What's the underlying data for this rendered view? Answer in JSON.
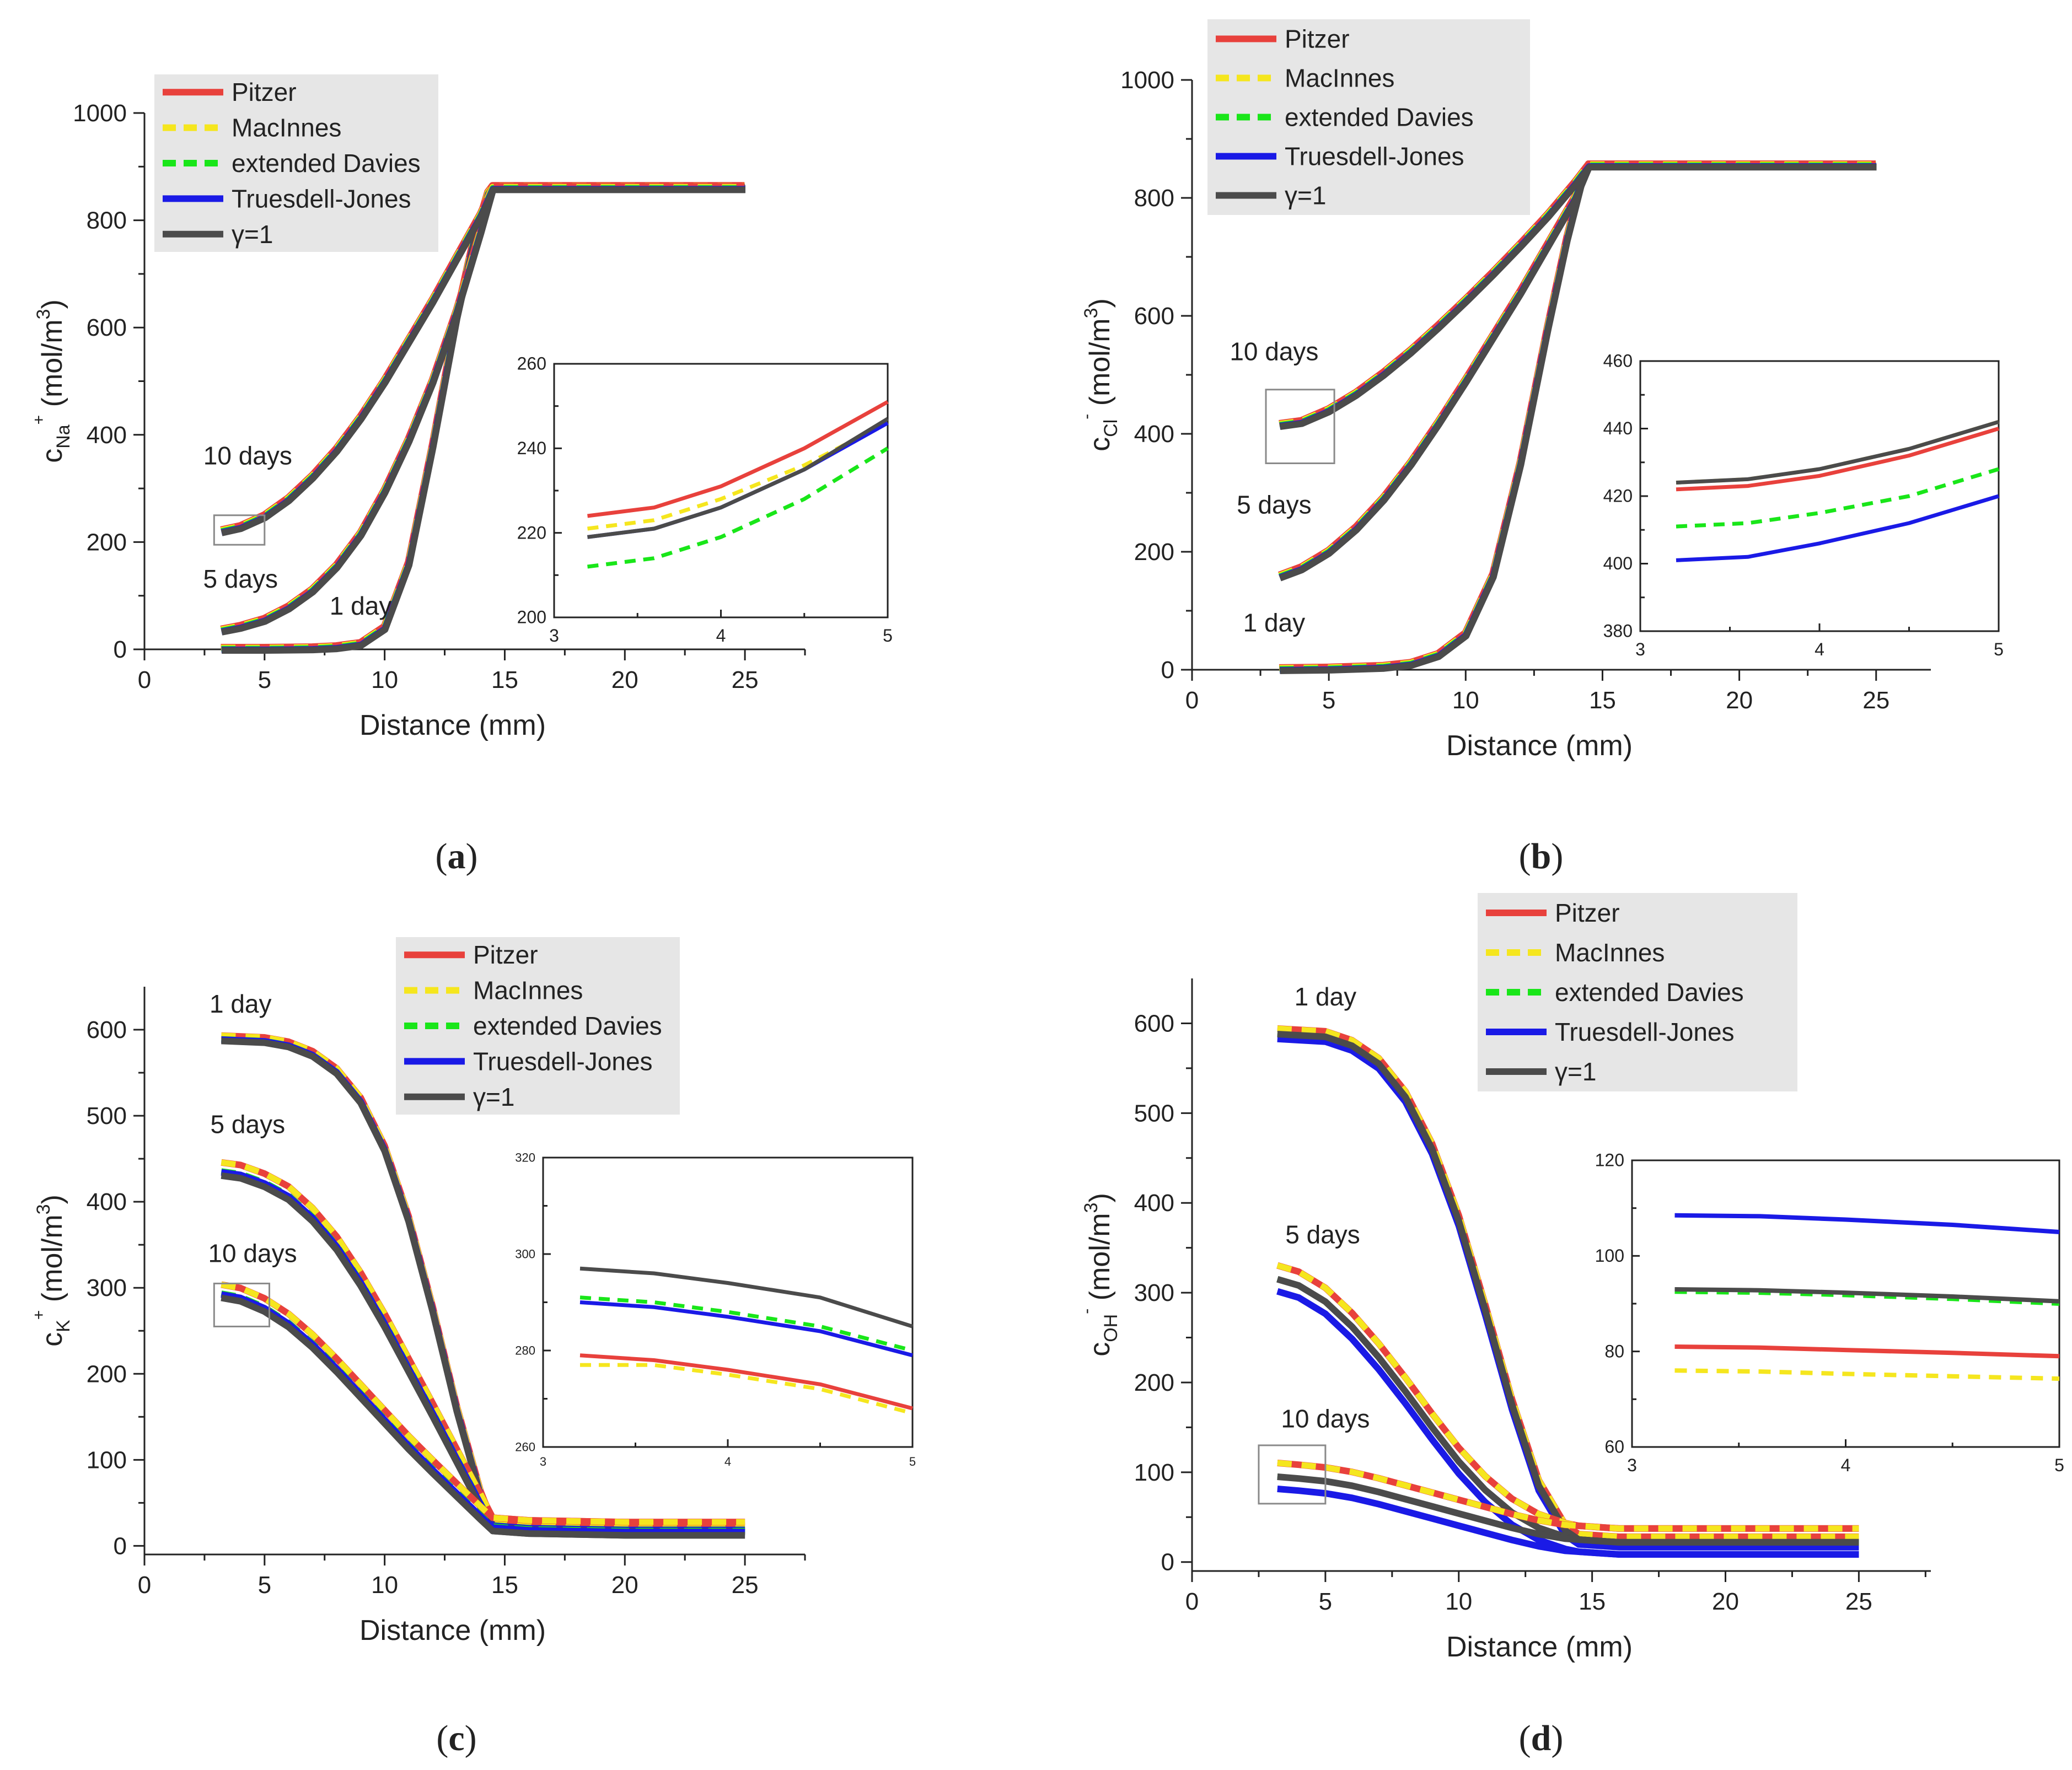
{
  "colors": {
    "pitzer": "#e8413c",
    "macinnes": "#f5e61e",
    "davies": "#19e619",
    "truesdell": "#1a1ae6",
    "ideal": "#4b4b4b",
    "axis": "#222222",
    "legend_bg": "#e6e6e6",
    "zoom_box": "#8a8a8a"
  },
  "chart_data": [
    {
      "id": "a",
      "type": "line",
      "caption_label": "a",
      "xlabel": "Distance (mm)",
      "ylabel_main": "c",
      "ylabel_sub": "Na",
      "ylabel_sup": "+",
      "ylabel_unit": " (mol/m",
      "ylabel_unit_sup": "3",
      "ylabel_close": ")",
      "xlim": [
        0,
        27.5
      ],
      "ylim": [
        0,
        1000
      ],
      "xticks": [
        0,
        5,
        10,
        15,
        20,
        25
      ],
      "yticks": [
        0,
        200,
        400,
        600,
        800,
        1000
      ],
      "legend": [
        "Pitzer",
        "MacInnes",
        "extended Davies",
        "Truesdell-Jones",
        "γ=1"
      ],
      "annotations": [
        {
          "text": "10 days",
          "x": 4.3,
          "y": 345
        },
        {
          "text": "5 days",
          "x": 4,
          "y": 115
        },
        {
          "text": "1 day",
          "x": 9,
          "y": 65
        }
      ],
      "zoom_box": {
        "x": [
          2.9,
          5.0
        ],
        "y": [
          195,
          250
        ]
      },
      "series": [
        {
          "name": "1 day",
          "x": [
            3.2,
            5,
            7,
            8,
            9,
            10,
            11,
            12,
            13,
            13.7,
            14.3,
            14.5,
            16,
            20,
            25
          ],
          "y": [
            1,
            1,
            2,
            4,
            10,
            40,
            160,
            380,
            620,
            760,
            850,
            862,
            862,
            862,
            862
          ]
        },
        {
          "name": "5 days",
          "x": [
            3.2,
            4,
            5,
            6,
            7,
            8,
            9,
            10,
            11,
            12,
            13,
            14,
            14.5,
            16,
            20,
            25
          ],
          "y": [
            35,
            42,
            55,
            78,
            110,
            155,
            215,
            295,
            390,
            500,
            630,
            780,
            860,
            860,
            860,
            860
          ]
        },
        {
          "name": "10 days",
          "x": [
            3.2,
            4,
            5,
            6,
            7,
            8,
            9,
            10,
            11,
            12,
            13,
            14,
            14.5,
            16,
            20,
            25
          ],
          "y": [
            220,
            228,
            248,
            280,
            322,
            372,
            432,
            500,
            575,
            650,
            730,
            810,
            860,
            860,
            860,
            860
          ]
        }
      ],
      "inset": {
        "xlim": [
          3,
          5
        ],
        "ylim": [
          200,
          260
        ],
        "xticks": [
          3,
          4,
          5
        ],
        "yticks": [
          200,
          220,
          240,
          260
        ],
        "series": [
          {
            "name": "Pitzer",
            "x": [
              3.2,
              3.6,
              4.0,
              4.5,
              5.0
            ],
            "y": [
              224,
              226,
              231,
              240,
              251
            ]
          },
          {
            "name": "MacInnes",
            "x": [
              3.2,
              3.6,
              4.0,
              4.5,
              5.0
            ],
            "y": [
              221,
              223,
              228,
              236,
              246
            ]
          },
          {
            "name": "extended Davies",
            "x": [
              3.2,
              3.6,
              4.0,
              4.5,
              5.0
            ],
            "y": [
              212,
              214,
              219,
              228,
              240
            ]
          },
          {
            "name": "Truesdell-Jones",
            "x": [
              3.2,
              3.6,
              4.0,
              4.5,
              5.0
            ],
            "y": [
              219,
              221,
              226,
              235,
              246
            ]
          },
          {
            "name": "γ=1",
            "x": [
              3.2,
              3.6,
              4.0,
              4.5,
              5.0
            ],
            "y": [
              219,
              221,
              226,
              235,
              247
            ]
          }
        ]
      }
    },
    {
      "id": "b",
      "type": "line",
      "caption_label": "b",
      "xlabel": "Distance (mm)",
      "ylabel_main": "c",
      "ylabel_sub": "Cl",
      "ylabel_sup": "-",
      "ylabel_unit": " (mol/m",
      "ylabel_unit_sup": "3",
      "ylabel_close": ")",
      "xlim": [
        0,
        27
      ],
      "ylim": [
        0,
        1000
      ],
      "xticks": [
        0,
        5,
        10,
        15,
        20,
        25
      ],
      "yticks": [
        0,
        200,
        400,
        600,
        800,
        1000
      ],
      "legend": [
        "Pitzer",
        "MacInnes",
        "extended Davies",
        "Truesdell-Jones",
        "γ=1"
      ],
      "annotations": [
        {
          "text": "10 days",
          "x": 3,
          "y": 525
        },
        {
          "text": "5 days",
          "x": 3,
          "y": 265
        },
        {
          "text": "1 day",
          "x": 3,
          "y": 65
        }
      ],
      "zoom_box": {
        "x": [
          2.7,
          5.2
        ],
        "y": [
          350,
          475
        ]
      },
      "series": [
        {
          "name": "1 day",
          "x": [
            3.2,
            5,
            7,
            8,
            9,
            10,
            11,
            12,
            13,
            13.7,
            14.3,
            14.5,
            16,
            20,
            25
          ],
          "y": [
            1,
            2,
            5,
            10,
            25,
            60,
            160,
            350,
            580,
            730,
            840,
            855,
            855,
            855,
            855
          ]
        },
        {
          "name": "5 days",
          "x": [
            3.2,
            4,
            5,
            6,
            7,
            8,
            9,
            10,
            11,
            12,
            13,
            14,
            14.5,
            16,
            20,
            25
          ],
          "y": [
            158,
            172,
            200,
            240,
            290,
            350,
            418,
            490,
            565,
            640,
            720,
            800,
            855,
            855,
            855,
            855
          ]
        },
        {
          "name": "10 days",
          "x": [
            3.2,
            4,
            5,
            6,
            7,
            8,
            9,
            10,
            11,
            12,
            13,
            14,
            14.5,
            16,
            20,
            25
          ],
          "y": [
            415,
            420,
            440,
            468,
            502,
            540,
            582,
            626,
            672,
            720,
            770,
            825,
            855,
            855,
            855,
            855
          ]
        }
      ],
      "inset": {
        "xlim": [
          3,
          5
        ],
        "ylim": [
          380,
          460
        ],
        "xticks": [
          3,
          4,
          5
        ],
        "yticks": [
          380,
          400,
          420,
          440,
          460
        ],
        "series": [
          {
            "name": "Pitzer",
            "x": [
              3.2,
              3.6,
              4.0,
              4.5,
              5.0
            ],
            "y": [
              422,
              423,
              426,
              432,
              440
            ]
          },
          {
            "name": "MacInnes",
            "x": [
              3.2,
              3.6,
              4.0,
              4.5,
              5.0
            ],
            "y": [
              424,
              425,
              428,
              434,
              442
            ]
          },
          {
            "name": "extended Davies",
            "x": [
              3.2,
              3.6,
              4.0,
              4.5,
              5.0
            ],
            "y": [
              411,
              412,
              415,
              420,
              428
            ]
          },
          {
            "name": "Truesdell-Jones",
            "x": [
              3.2,
              3.6,
              4.0,
              4.5,
              5.0
            ],
            "y": [
              401,
              402,
              406,
              412,
              420
            ]
          },
          {
            "name": "γ=1",
            "x": [
              3.2,
              3.6,
              4.0,
              4.5,
              5.0
            ],
            "y": [
              424,
              425,
              428,
              434,
              442
            ]
          }
        ]
      }
    },
    {
      "id": "c",
      "type": "line",
      "caption_label": "c",
      "xlabel": "Distance (mm)",
      "ylabel_main": "c",
      "ylabel_sub": "K",
      "ylabel_sup": "+",
      "ylabel_unit": " (mol/m",
      "ylabel_unit_sup": "3",
      "ylabel_close": ")",
      "xlim": [
        0,
        27.5
      ],
      "ylim": [
        -10,
        650
      ],
      "xticks": [
        0,
        5,
        10,
        15,
        20,
        25
      ],
      "yticks": [
        0,
        100,
        200,
        300,
        400,
        500,
        600
      ],
      "legend": [
        "Pitzer",
        "MacInnes",
        "extended Davies",
        "Truesdell-Jones",
        "γ=1"
      ],
      "annotations": [
        {
          "text": "1 day",
          "x": 4,
          "y": 620
        },
        {
          "text": "5 days",
          "x": 4.3,
          "y": 480
        },
        {
          "text": "10 days",
          "x": 4.5,
          "y": 330
        }
      ],
      "zoom_box": {
        "x": [
          2.9,
          5.2
        ],
        "y": [
          255,
          305
        ]
      },
      "series": [
        {
          "name": "1 day",
          "x": [
            3.2,
            5,
            6,
            7,
            8,
            9,
            10,
            11,
            12,
            13,
            14,
            14.5,
            16,
            20,
            25
          ],
          "y": [
            590,
            588,
            583,
            572,
            552,
            518,
            462,
            380,
            275,
            160,
            60,
            25,
            22,
            20,
            20
          ]
        },
        {
          "name": "5 days",
          "x": [
            3.2,
            4,
            5,
            6,
            7,
            8,
            9,
            10,
            11,
            12,
            13,
            14,
            14.5,
            16,
            20,
            25
          ],
          "y": [
            438,
            435,
            425,
            410,
            385,
            352,
            310,
            262,
            210,
            158,
            105,
            52,
            25,
            22,
            20,
            20
          ]
        },
        {
          "name": "10 days",
          "x": [
            3.2,
            4,
            5,
            6,
            7,
            8,
            9,
            10,
            11,
            12,
            13,
            14,
            14.5,
            16,
            20,
            25
          ],
          "y": [
            296,
            292,
            280,
            262,
            238,
            210,
            180,
            150,
            120,
            92,
            65,
            38,
            25,
            22,
            20,
            20
          ]
        }
      ],
      "inset": {
        "xlim": [
          3,
          5
        ],
        "ylim": [
          260,
          320
        ],
        "xticks": [
          3,
          4,
          5
        ],
        "yticks": [
          260,
          280,
          300,
          320
        ],
        "series": [
          {
            "name": "Pitzer",
            "x": [
              3.2,
              3.6,
              4.0,
              4.5,
              5.0
            ],
            "y": [
              279,
              278,
              276,
              273,
              268
            ]
          },
          {
            "name": "MacInnes",
            "x": [
              3.2,
              3.6,
              4.0,
              4.5,
              5.0
            ],
            "y": [
              277,
              277,
              275,
              272,
              267
            ]
          },
          {
            "name": "extended Davies",
            "x": [
              3.2,
              3.6,
              4.0,
              4.5,
              5.0
            ],
            "y": [
              291,
              290,
              288,
              285,
              280
            ]
          },
          {
            "name": "Truesdell-Jones",
            "x": [
              3.2,
              3.6,
              4.0,
              4.5,
              5.0
            ],
            "y": [
              290,
              289,
              287,
              284,
              279
            ]
          },
          {
            "name": "γ=1",
            "x": [
              3.2,
              3.6,
              4.0,
              4.5,
              5.0
            ],
            "y": [
              297,
              296,
              294,
              291,
              285
            ]
          }
        ]
      }
    },
    {
      "id": "d",
      "type": "line",
      "caption_label": "d",
      "xlabel": "Distance (mm)",
      "ylabel_main": "c",
      "ylabel_sub": "OH",
      "ylabel_sup": "-",
      "ylabel_unit": " (mol/m",
      "ylabel_unit_sup": "3",
      "ylabel_close": ")",
      "xlim": [
        0,
        27.7
      ],
      "ylim": [
        -10,
        650
      ],
      "xticks": [
        0,
        5,
        10,
        15,
        20,
        25
      ],
      "yticks": [
        0,
        100,
        200,
        300,
        400,
        500,
        600
      ],
      "legend": [
        "Pitzer",
        "MacInnes",
        "extended Davies",
        "Truesdell-Jones",
        "γ=1"
      ],
      "annotations": [
        {
          "text": "1 day",
          "x": 5,
          "y": 620
        },
        {
          "text": "5 days",
          "x": 4.9,
          "y": 355
        },
        {
          "text": "10 days",
          "x": 5,
          "y": 150
        }
      ],
      "zoom_box": {
        "x": [
          2.5,
          5
        ],
        "y": [
          65,
          130
        ]
      },
      "series": [
        {
          "name": "1 day",
          "x": [
            3.2,
            5,
            6,
            7,
            8,
            9,
            10,
            11,
            12,
            13,
            14,
            14.5,
            16,
            20,
            25
          ],
          "y": [
            588,
            585,
            575,
            555,
            518,
            460,
            380,
            280,
            175,
            85,
            35,
            25,
            22,
            22,
            22
          ]
        },
        {
          "name": "5 days",
          "x": [
            3.2,
            4,
            5,
            6,
            7,
            8,
            9,
            10,
            11,
            12,
            13,
            14,
            14.5,
            16,
            20,
            25
          ],
          "y": [
            315,
            308,
            290,
            262,
            228,
            190,
            150,
            112,
            80,
            55,
            38,
            28,
            25,
            22,
            22,
            22
          ]
        },
        {
          "name": "10 days",
          "x": [
            3.2,
            4,
            5,
            6,
            7,
            8,
            9,
            10,
            11,
            12,
            13,
            14,
            14.5,
            16,
            20,
            25
          ],
          "y": [
            95,
            93,
            90,
            85,
            78,
            70,
            62,
            54,
            46,
            38,
            31,
            26,
            25,
            22,
            22,
            22
          ]
        }
      ],
      "inset": {
        "xlim": [
          3,
          5
        ],
        "ylim": [
          60,
          120
        ],
        "xticks": [
          3,
          4,
          5
        ],
        "yticks": [
          60,
          80,
          100,
          120
        ],
        "series": [
          {
            "name": "Pitzer",
            "x": [
              3.2,
              3.6,
              4.0,
              4.5,
              5.0
            ],
            "y": [
              81,
              80.8,
              80.3,
              79.7,
              79
            ]
          },
          {
            "name": "MacInnes",
            "x": [
              3.2,
              3.6,
              4.0,
              4.5,
              5.0
            ],
            "y": [
              76,
              75.8,
              75.3,
              74.8,
              74.3
            ]
          },
          {
            "name": "extended Davies",
            "x": [
              3.2,
              3.6,
              4.0,
              4.5,
              5.0
            ],
            "y": [
              92.5,
              92.3,
              91.8,
              91,
              90
            ]
          },
          {
            "name": "Truesdell-Jones",
            "x": [
              3.2,
              3.6,
              4.0,
              4.5,
              5.0
            ],
            "y": [
              108.5,
              108.3,
              107.6,
              106.5,
              105
            ]
          },
          {
            "name": "γ=1",
            "x": [
              3.2,
              3.6,
              4.0,
              4.5,
              5.0
            ],
            "y": [
              93,
              92.8,
              92.3,
              91.5,
              90.5
            ]
          }
        ]
      }
    }
  ]
}
